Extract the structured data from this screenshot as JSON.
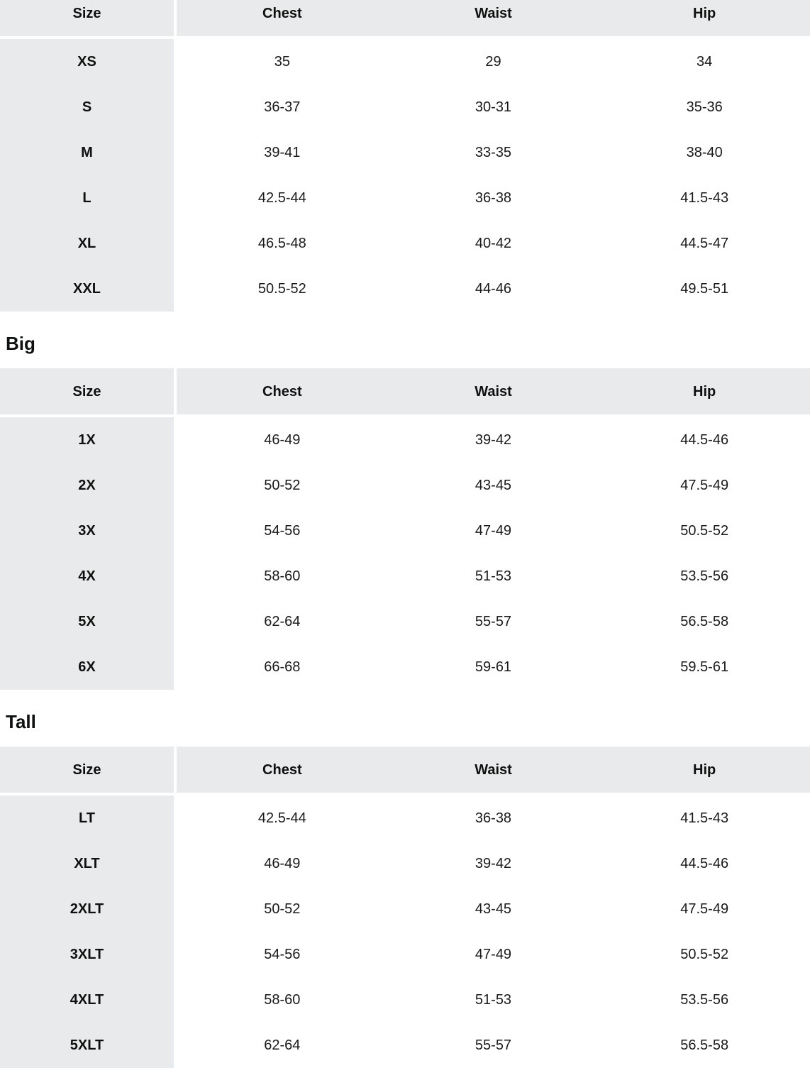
{
  "colors": {
    "table_gray": "#e9eaeb",
    "page_background": "#ffffff",
    "header_text": "#0f1111",
    "cell_text": "#1a1a1a"
  },
  "section_labels": {
    "big": "Big",
    "tall": "Tall"
  },
  "tables": [
    {
      "label": "",
      "columns": [
        "Size",
        "Chest",
        "Waist",
        "Hip"
      ],
      "rows": [
        [
          "XS",
          "35",
          "29",
          "34"
        ],
        [
          "S",
          "36-37",
          "30-31",
          "35-36"
        ],
        [
          "M",
          "39-41",
          "33-35",
          "38-40"
        ],
        [
          "L",
          "42.5-44",
          "36-38",
          "41.5-43"
        ],
        [
          "XL",
          "46.5-48",
          "40-42",
          "44.5-47"
        ],
        [
          "XXL",
          "50.5-52",
          "44-46",
          "49.5-51"
        ]
      ]
    },
    {
      "label": "Big",
      "columns": [
        "Size",
        "Chest",
        "Waist",
        "Hip"
      ],
      "rows": [
        [
          "1X",
          "46-49",
          "39-42",
          "44.5-46"
        ],
        [
          "2X",
          "50-52",
          "43-45",
          "47.5-49"
        ],
        [
          "3X",
          "54-56",
          "47-49",
          "50.5-52"
        ],
        [
          "4X",
          "58-60",
          "51-53",
          "53.5-56"
        ],
        [
          "5X",
          "62-64",
          "55-57",
          "56.5-58"
        ],
        [
          "6X",
          "66-68",
          "59-61",
          "59.5-61"
        ]
      ]
    },
    {
      "label": "Tall",
      "columns": [
        "Size",
        "Chest",
        "Waist",
        "Hip"
      ],
      "rows": [
        [
          "LT",
          "42.5-44",
          "36-38",
          "41.5-43"
        ],
        [
          "XLT",
          "46-49",
          "39-42",
          "44.5-46"
        ],
        [
          "2XLT",
          "50-52",
          "43-45",
          "47.5-49"
        ],
        [
          "3XLT",
          "54-56",
          "47-49",
          "50.5-52"
        ],
        [
          "4XLT",
          "58-60",
          "51-53",
          "53.5-56"
        ],
        [
          "5XLT",
          "62-64",
          "55-57",
          "56.5-58"
        ]
      ]
    }
  ]
}
